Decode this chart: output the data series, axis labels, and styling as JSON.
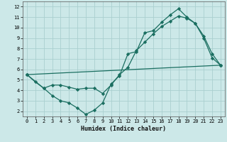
{
  "xlabel": "Humidex (Indice chaleur)",
  "bg_color": "#cce8e8",
  "grid_color": "#aacfcf",
  "line_color": "#1a6e60",
  "marker": "D",
  "markersize": 2.2,
  "linewidth": 0.9,
  "xlim": [
    -0.5,
    23.5
  ],
  "ylim": [
    1.5,
    12.5
  ],
  "xticks": [
    0,
    1,
    2,
    3,
    4,
    5,
    6,
    7,
    8,
    9,
    10,
    11,
    12,
    13,
    14,
    15,
    16,
    17,
    18,
    19,
    20,
    21,
    22,
    23
  ],
  "yticks": [
    2,
    3,
    4,
    5,
    6,
    7,
    8,
    9,
    10,
    11,
    12
  ],
  "series": [
    {
      "x": [
        0,
        1,
        2,
        3,
        4,
        5,
        6,
        7,
        8,
        9,
        10,
        11,
        12,
        13,
        14,
        15,
        16,
        17,
        18,
        19,
        20,
        21,
        22,
        23
      ],
      "y": [
        5.5,
        4.8,
        4.2,
        3.5,
        3.0,
        2.8,
        2.3,
        1.7,
        2.1,
        2.8,
        4.6,
        5.4,
        7.5,
        7.7,
        9.5,
        9.7,
        10.5,
        11.2,
        11.8,
        11.0,
        10.4,
        9.0,
        7.1,
        6.4
      ]
    },
    {
      "x": [
        0,
        2,
        3,
        4,
        5,
        6,
        7,
        8,
        9,
        10,
        11,
        12,
        13,
        14,
        15,
        16,
        17,
        18,
        19,
        20,
        21,
        22,
        23
      ],
      "y": [
        5.5,
        4.2,
        4.5,
        4.5,
        4.3,
        4.1,
        4.2,
        4.2,
        3.7,
        4.5,
        5.5,
        6.2,
        7.8,
        8.6,
        9.4,
        10.1,
        10.6,
        11.1,
        10.9,
        10.4,
        9.2,
        7.5,
        6.4
      ]
    },
    {
      "x": [
        0,
        23
      ],
      "y": [
        5.5,
        6.4
      ]
    }
  ]
}
